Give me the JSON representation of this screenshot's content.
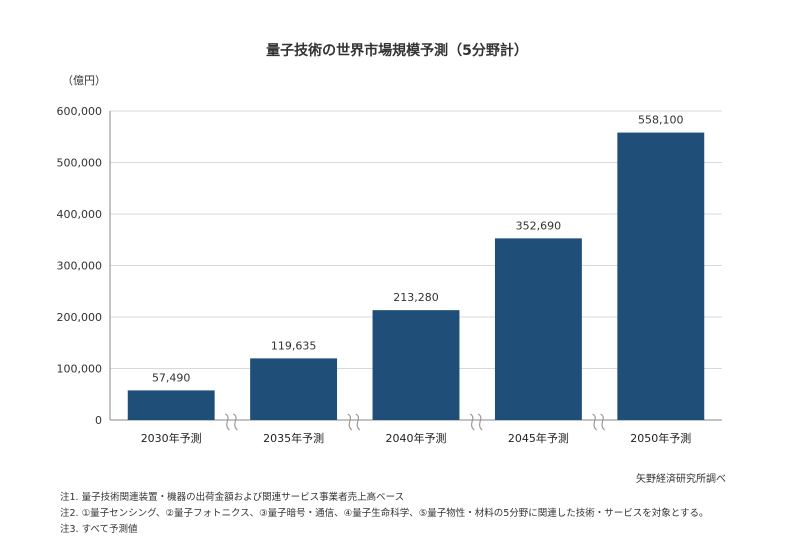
{
  "chart_data": {
    "type": "bar",
    "title": "量子技術の世界市場規模予測（5分野計）",
    "unit": "（億円）",
    "categories": [
      "2030年予測",
      "2035年予測",
      "2040年予測",
      "2045年予測",
      "2050年予測"
    ],
    "values": [
      57490,
      119635,
      213280,
      352690,
      558100
    ],
    "value_labels": [
      "57,490",
      "119,635",
      "213,280",
      "352,690",
      "558,100"
    ],
    "yticks": [
      "0",
      "100,000",
      "200,000",
      "300,000",
      "400,000",
      "500,000",
      "600,000"
    ],
    "ylim": [
      0,
      600000
    ],
    "bar_color": "#1f4e79",
    "grid": true,
    "axis_break": true
  },
  "source": "矢野経済研究所調べ",
  "notes": [
    "注1. 量子技術関連装置・機器の出荷金額および関連サービス事業者売上高ベース",
    "注2. ①量子センシング、②量子フォトニクス、③量子暗号・通信、④量子生命科学、⑤量子物性・材料の5分野に関連した技術・サービスを対象とする。",
    "注3. すべて予測値"
  ]
}
